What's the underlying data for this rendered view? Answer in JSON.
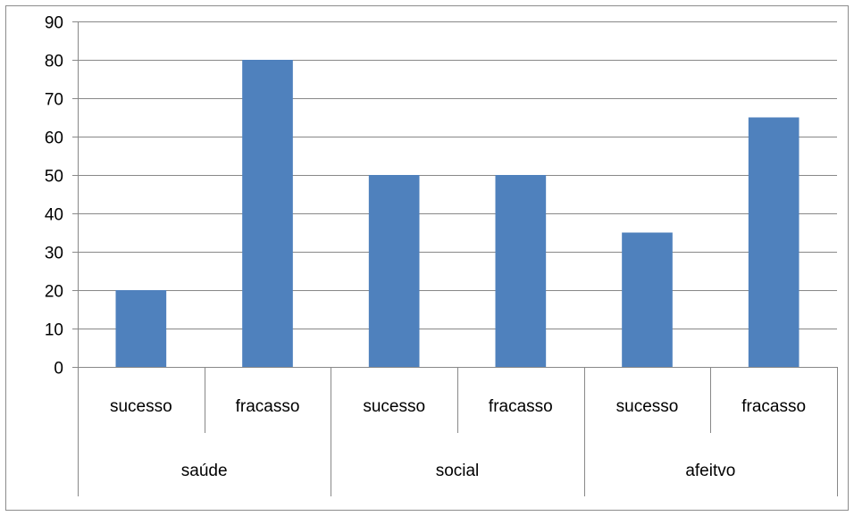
{
  "chart_data": {
    "type": "bar",
    "categories": [
      "sucesso",
      "fracasso",
      "sucesso",
      "fracasso",
      "sucesso",
      "fracasso"
    ],
    "groups": [
      {
        "label": "saúde",
        "span": 2
      },
      {
        "label": "social",
        "span": 2
      },
      {
        "label": "afeitvo",
        "span": 2
      }
    ],
    "values": [
      20,
      80,
      50,
      50,
      35,
      65
    ],
    "ylim": [
      0,
      90
    ],
    "yticks": [
      "0",
      "10",
      "20",
      "30",
      "40",
      "50",
      "60",
      "70",
      "80",
      "90"
    ],
    "grid": true,
    "legend": "none",
    "title": "",
    "xlabel": "",
    "ylabel": ""
  },
  "colors": {
    "bar": "#4F81BD",
    "grid": "#888888",
    "axis": "#888888",
    "frame": "#8c8c8c"
  }
}
